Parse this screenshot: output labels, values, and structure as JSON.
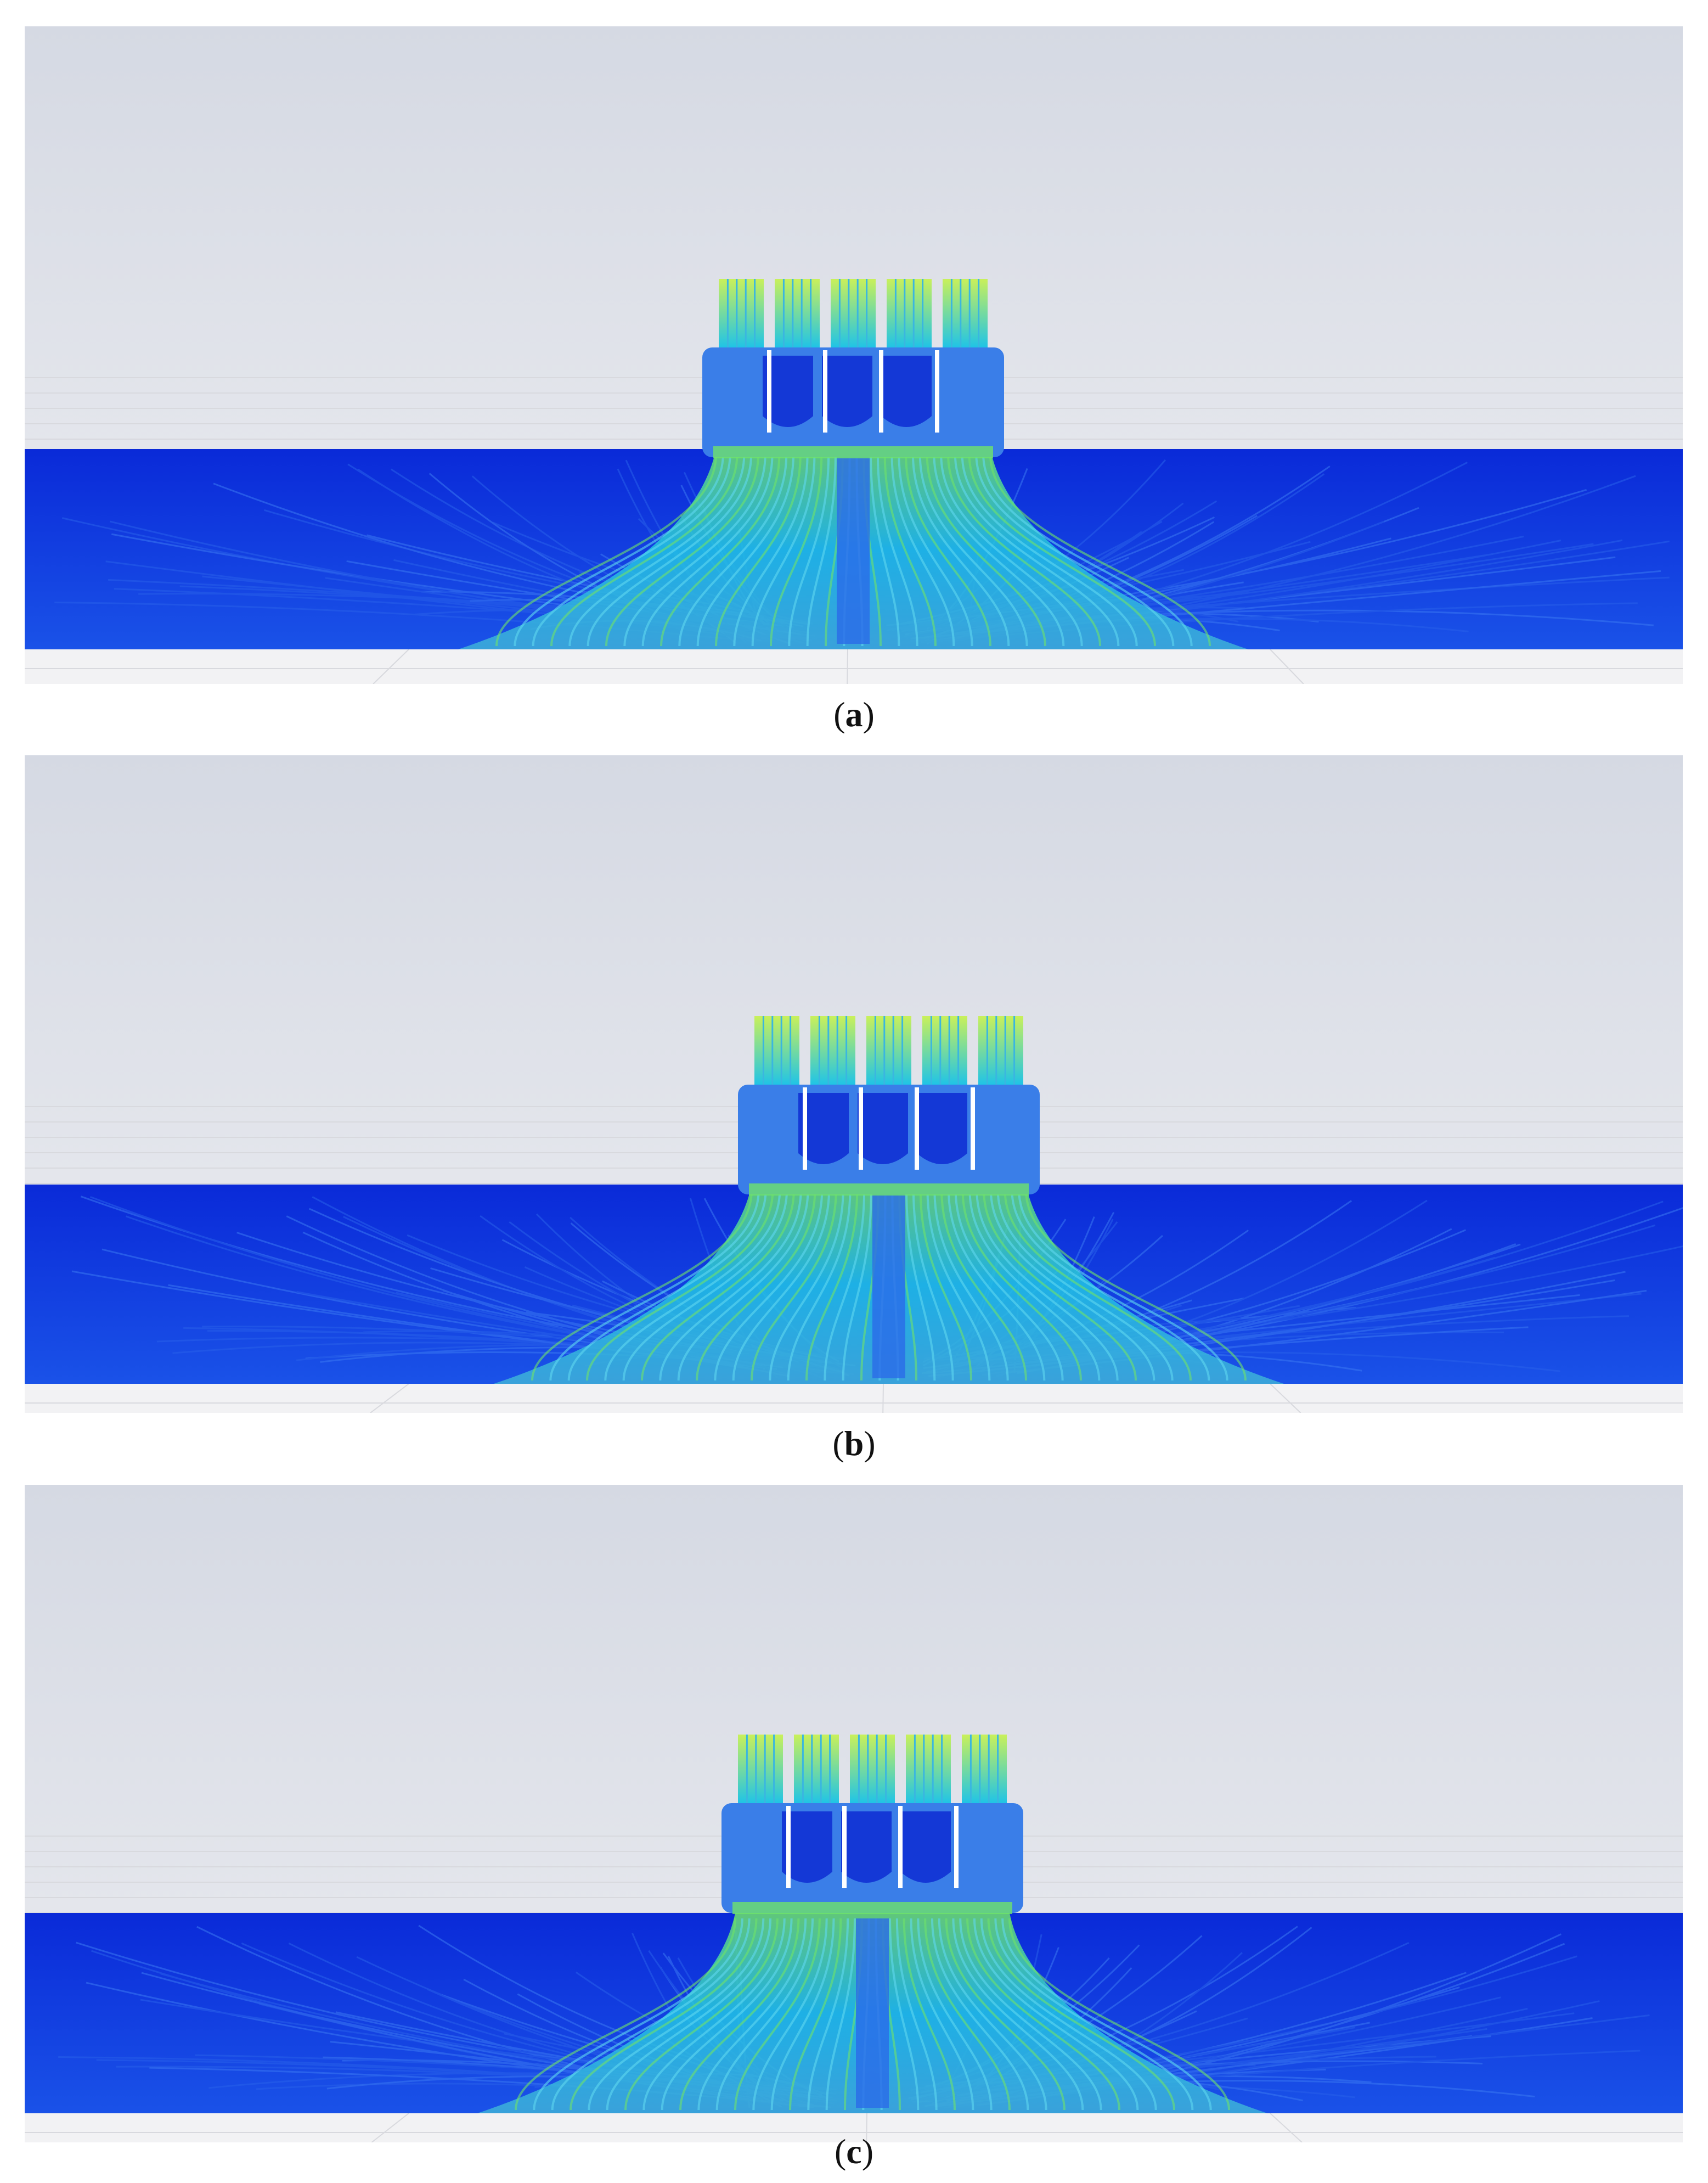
{
  "panels": [
    {
      "id": "a",
      "caption_open": "(",
      "caption_letter": "a",
      "caption_close": ")"
    },
    {
      "id": "b",
      "caption_open": "(",
      "caption_letter": "b",
      "caption_close": ")"
    },
    {
      "id": "c",
      "caption_open": "(",
      "caption_letter": "c",
      "caption_close": ")"
    }
  ],
  "colors": {
    "sky_top": "#d5d9e3",
    "sky_bottom": "#ecedf1",
    "floor": "#f2f2f4",
    "water_dark": "#0a2ad8",
    "water_mid": "#1a52e8",
    "plume_cyan": "#20c4e6",
    "plume_green": "#6fe36a",
    "pump_yellow": "#c9f05a"
  }
}
